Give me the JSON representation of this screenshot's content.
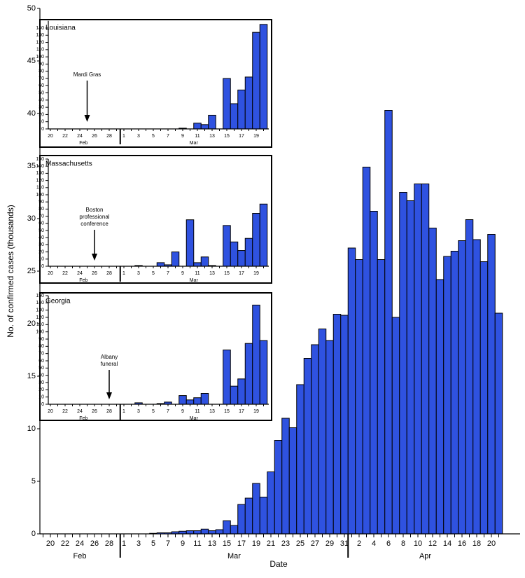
{
  "chart_data": [
    {
      "type": "bar",
      "x_label": "Date",
      "y_label": "No. of confirmed cases (thousands)",
      "color": "#2f52e0",
      "group_labels": [
        "Feb",
        "Mar",
        "Apr"
      ],
      "categories": [
        null,
        "20",
        null,
        "22",
        null,
        "24",
        null,
        "26",
        null,
        "28",
        null,
        "1",
        null,
        "3",
        null,
        "5",
        null,
        "7",
        null,
        "9",
        null,
        "11",
        null,
        "13",
        null,
        "15",
        null,
        "17",
        null,
        "19",
        null,
        "21",
        null,
        "23",
        null,
        "25",
        null,
        "27",
        null,
        "29",
        null,
        "31",
        null,
        "2",
        null,
        "4",
        null,
        "6",
        null,
        "8",
        null,
        "10",
        null,
        "12",
        null,
        "14",
        null,
        "16",
        null,
        "18",
        null,
        "20",
        null
      ],
      "values": [
        0,
        0,
        0,
        0,
        0,
        0,
        0,
        0,
        0,
        0,
        0,
        0,
        0,
        0,
        0,
        0.05,
        0.1,
        0.1,
        0.2,
        0.25,
        0.3,
        0.3,
        0.45,
        0.3,
        0.4,
        1.25,
        0.8,
        2.8,
        3.4,
        4.8,
        3.5,
        5.9,
        8.9,
        11,
        10.1,
        14.2,
        16.7,
        18,
        19.5,
        18.4,
        20.9,
        20.8,
        27.2,
        26.1,
        34.9,
        30.7,
        26.1,
        40.3,
        20.6,
        32.5,
        31.7,
        33.3,
        33.3,
        29.1,
        24.2,
        26.4,
        26.9,
        27.9,
        29.9,
        28.0,
        25.9,
        28.5,
        21
      ],
      "ylim": [
        0,
        50
      ],
      "yticks": [
        0,
        5,
        10,
        15,
        20,
        25,
        30,
        35,
        40,
        45,
        50
      ]
    },
    {
      "type": "bar",
      "title": "Louisiana",
      "annotation": [
        "Mardi Gras"
      ],
      "color": "#2f52e0",
      "group_labels": [
        "Feb",
        "Mar"
      ],
      "categories": [
        "20",
        null,
        "22",
        null,
        "24",
        null,
        "26",
        null,
        "28",
        null,
        "1",
        null,
        "3",
        null,
        "5",
        null,
        "7",
        null,
        "9",
        null,
        "11",
        null,
        "13",
        null,
        "15",
        null,
        "17",
        null,
        "19",
        null
      ],
      "values": [
        0,
        0,
        0,
        0,
        0,
        0,
        0,
        0,
        0,
        0,
        0,
        0,
        0,
        0,
        0,
        0,
        0,
        0,
        1,
        0,
        8,
        6,
        19,
        0,
        70,
        35,
        54,
        72,
        134,
        145
      ],
      "ylim": [
        0,
        150
      ],
      "yticks": [
        0,
        10,
        20,
        30,
        40,
        50,
        60,
        70,
        80,
        90,
        100,
        110,
        120,
        130,
        140
      ]
    },
    {
      "type": "bar",
      "title": "Massachusetts",
      "annotation": [
        "Boston",
        "professional",
        "conference"
      ],
      "color": "#2f52e0",
      "group_labels": [
        "Feb",
        "Mar"
      ],
      "categories": [
        "20",
        null,
        "22",
        null,
        "24",
        null,
        "26",
        null,
        "28",
        null,
        "1",
        null,
        "3",
        null,
        "5",
        null,
        "7",
        null,
        "9",
        null,
        "11",
        null,
        "13",
        null,
        "15",
        null,
        "17",
        null,
        "19",
        null
      ],
      "values": [
        0,
        0,
        0,
        0,
        0,
        0,
        0,
        0,
        0,
        0,
        0,
        0,
        1,
        0,
        0,
        5,
        2,
        20,
        0,
        65,
        5,
        13,
        1,
        0,
        57,
        34,
        22,
        39,
        74,
        87
      ],
      "ylim": [
        0,
        150
      ],
      "yticks": [
        0,
        10,
        20,
        30,
        40,
        50,
        60,
        70,
        80,
        90,
        100,
        110,
        120,
        130,
        140,
        150
      ]
    },
    {
      "type": "bar",
      "title": "Georgia",
      "annotation": [
        "Albany",
        "funeral"
      ],
      "color": "#2f52e0",
      "group_labels": [
        "Feb",
        "Mar"
      ],
      "categories": [
        "20",
        null,
        "22",
        null,
        "24",
        null,
        "26",
        null,
        "28",
        null,
        "1",
        null,
        "3",
        null,
        "5",
        null,
        "7",
        null,
        "9",
        null,
        "11",
        null,
        "13",
        null,
        "15",
        null,
        "17",
        null,
        "19",
        null
      ],
      "values": [
        0,
        0,
        0,
        0,
        0,
        0,
        0,
        0,
        0,
        0,
        0,
        0,
        2,
        0,
        0,
        1,
        3,
        0,
        12,
        6,
        9,
        15,
        0,
        0,
        75,
        25,
        35,
        84,
        137,
        88
      ],
      "ylim": [
        0,
        150
      ],
      "yticks": [
        0,
        10,
        20,
        30,
        40,
        50,
        60,
        70,
        80,
        90,
        100,
        110,
        120,
        130,
        140,
        150
      ]
    }
  ]
}
